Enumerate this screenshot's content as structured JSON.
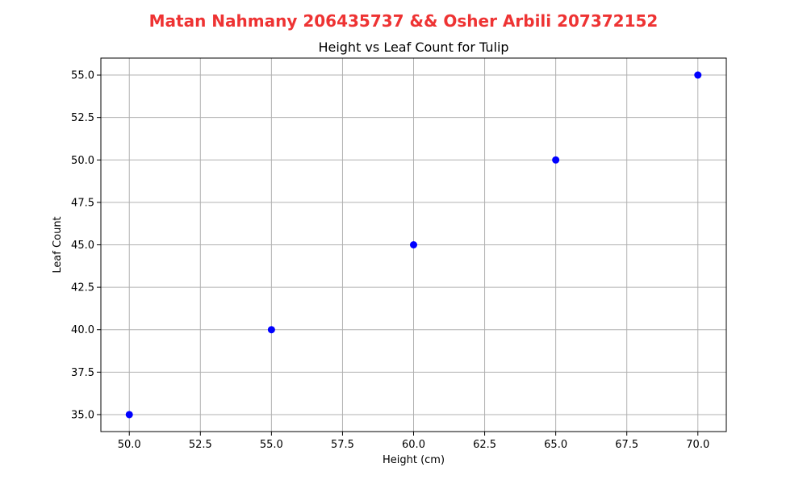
{
  "suptitle": "Matan Nahmany 206435737 && Osher Arbili 207372152",
  "suptitle_color": "#ee3333",
  "marker_color": "#0000ff",
  "chart_data": {
    "type": "scatter",
    "title": "Height vs Leaf Count for Tulip",
    "xlabel": "Height (cm)",
    "ylabel": "Leaf Count",
    "xlim": [
      49,
      71
    ],
    "ylim": [
      34,
      56
    ],
    "grid": true,
    "xticks": [
      50.0,
      52.5,
      55.0,
      57.5,
      60.0,
      62.5,
      65.0,
      67.5,
      70.0
    ],
    "xtick_labels": [
      "50.0",
      "52.5",
      "55.0",
      "57.5",
      "60.0",
      "62.5",
      "65.0",
      "67.5",
      "70.0"
    ],
    "yticks": [
      35.0,
      37.5,
      40.0,
      42.5,
      45.0,
      47.5,
      50.0,
      52.5,
      55.0
    ],
    "ytick_labels": [
      "35.0",
      "37.5",
      "40.0",
      "42.5",
      "45.0",
      "47.5",
      "50.0",
      "52.5",
      "55.0"
    ],
    "series": [
      {
        "x": [
          50,
          55,
          60,
          65,
          70
        ],
        "y": [
          35,
          40,
          45,
          50,
          55
        ]
      }
    ]
  }
}
